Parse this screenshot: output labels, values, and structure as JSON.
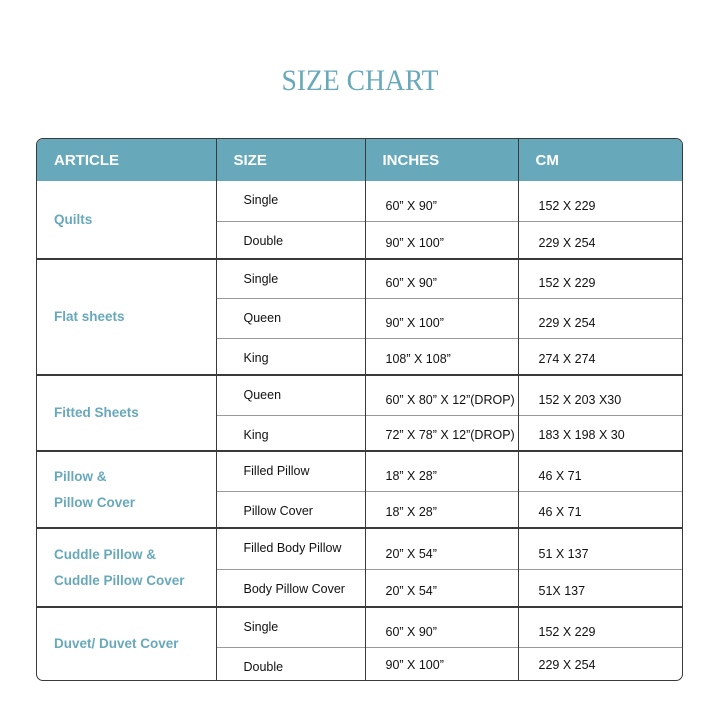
{
  "title": "SIZE CHART",
  "colors": {
    "accent": "#67a9bb",
    "text": "#111111",
    "border": "#3a3a3a"
  },
  "headers": [
    "ARTICLE",
    "SIZE",
    "INCHES",
    "CM"
  ],
  "groups": [
    {
      "article": [
        "Quilts"
      ],
      "rows": [
        [
          "Single",
          "60” X 90”",
          "152 X 229"
        ],
        [
          "Double",
          "90” X 100”",
          "229 X 254"
        ]
      ]
    },
    {
      "article": [
        "Flat sheets"
      ],
      "rows": [
        [
          "Single",
          "60” X 90”",
          "152 X 229"
        ],
        [
          "Queen",
          "90” X 100”",
          "229 X 254"
        ],
        [
          "King",
          "108” X 108”",
          "274 X 274"
        ]
      ]
    },
    {
      "article": [
        "Fitted Sheets"
      ],
      "rows": [
        [
          "Queen",
          "60” X 80” X 12”(DROP)",
          "152 X 203 X30"
        ],
        [
          "King",
          "72” X 78” X 12”(DROP)",
          "183 X 198 X 30"
        ]
      ]
    },
    {
      "article": [
        "Pillow &",
        "Pillow Cover"
      ],
      "rows": [
        [
          "Filled Pillow",
          "18” X 28”",
          "46 X 71"
        ],
        [
          "Pillow Cover",
          "18” X 28”",
          "46 X 71"
        ]
      ]
    },
    {
      "article": [
        "Cuddle Pillow &",
        "Cuddle Pillow Cover"
      ],
      "rows": [
        [
          "Filled Body Pillow",
          "20” X 54”",
          "51 X 137"
        ],
        [
          "Body Pillow Cover",
          "20” X 54”",
          "51X 137"
        ]
      ]
    },
    {
      "article": [
        "Duvet/ Duvet Cover"
      ],
      "rows": [
        [
          "Single",
          "60” X 90”",
          "152 X 229"
        ],
        [
          "Double",
          "90” X 100”",
          "229 X 254"
        ]
      ]
    }
  ]
}
